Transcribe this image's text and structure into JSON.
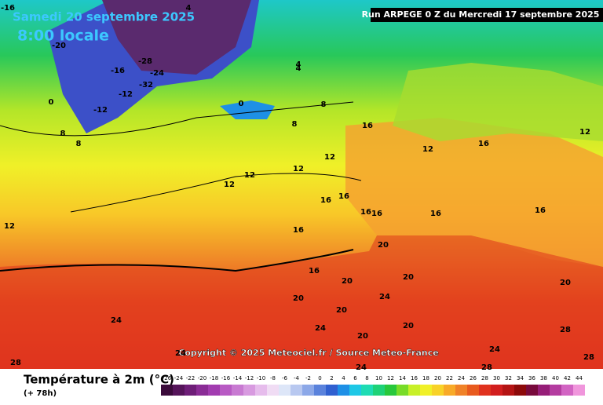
{
  "header": {
    "date": "Samedi 20 septembre 2025",
    "time": "8:00 locale",
    "run": "Run ARPEGE 0 Z du Mercredi 17 septembre 2025"
  },
  "copyright": "Copyright © 2025 Meteociel.fr / Source Meteo-France",
  "legend": {
    "title": "Température à 2m (°C)",
    "lead": "(+ 78h)",
    "ticks": [
      -26,
      -24,
      -22,
      -20,
      -18,
      -16,
      -14,
      -12,
      -10,
      -8,
      -6,
      -4,
      -2,
      0,
      2,
      4,
      6,
      8,
      10,
      12,
      14,
      16,
      18,
      20,
      22,
      24,
      26,
      28,
      30,
      32,
      34,
      36,
      38,
      40,
      42,
      44
    ],
    "colors": [
      "#3a0a3a",
      "#55145a",
      "#6e1e78",
      "#8a2c96",
      "#a23cb0",
      "#b85ac4",
      "#c87ad2",
      "#d89ae0",
      "#e6bcec",
      "#f0dcf4",
      "#dde6f8",
      "#b8c8f0",
      "#8ca8e8",
      "#5a82dc",
      "#3060d0",
      "#1e90e6",
      "#1ec8e6",
      "#1edcb4",
      "#1ed278",
      "#28c83c",
      "#78dc28",
      "#c8f028",
      "#f0f028",
      "#f8d228",
      "#f8aa28",
      "#f08228",
      "#e85a1e",
      "#e0321e",
      "#d21e1e",
      "#b41414",
      "#8c0a0a",
      "#780a3c",
      "#961e78",
      "#b43ca0",
      "#d264c3",
      "#f096dc"
    ]
  },
  "contours": [
    -16,
    -20,
    -12,
    -28,
    -32,
    -24,
    0,
    -16,
    -12,
    0,
    4,
    8,
    8,
    4,
    8,
    12,
    12,
    12,
    12,
    16,
    16,
    16,
    12,
    16,
    16,
    20,
    16,
    20,
    20,
    24,
    24,
    24,
    20,
    28,
    24,
    28,
    24,
    20,
    16,
    20,
    12,
    8,
    4,
    16,
    16,
    20,
    24,
    28,
    28,
    12,
    16,
    20
  ]
}
